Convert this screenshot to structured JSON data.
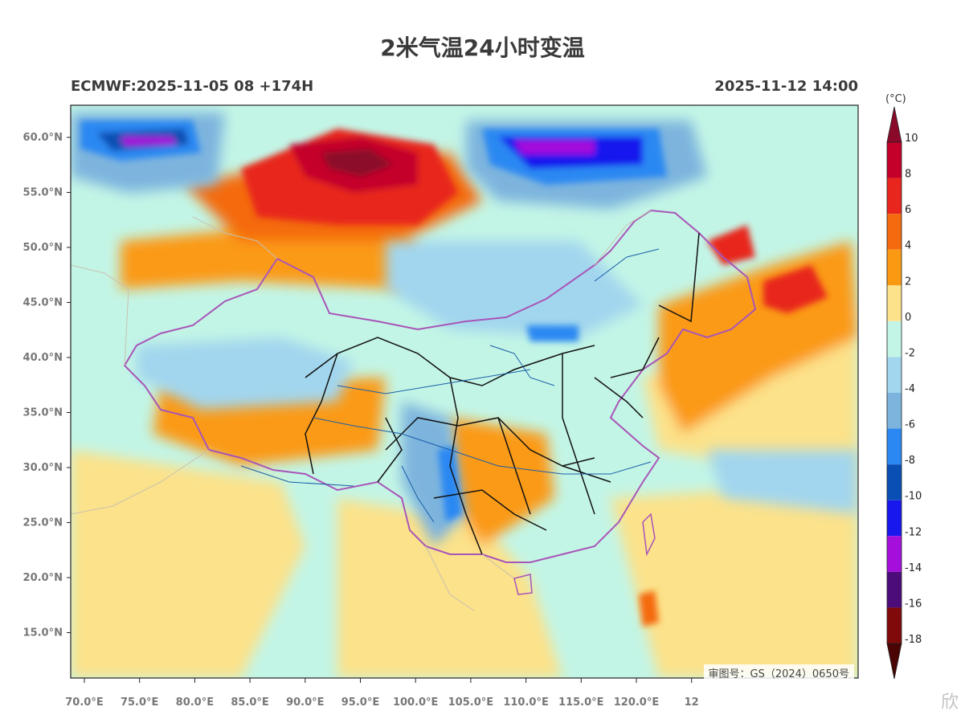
{
  "title": "2米气温24小时变温",
  "run_label": "ECMWF:2025-11-05 08 +174H",
  "valid_label": "2025-11-12 14:00",
  "colorbar": {
    "unit": "(°C)",
    "levels": [
      "10",
      "8",
      "6",
      "4",
      "2",
      "0",
      "-2",
      "-4",
      "-6",
      "-8",
      "-10",
      "-12",
      "-14",
      "-16",
      "-18"
    ],
    "colors": [
      "#8b0a2a",
      "#c4002a",
      "#e8261e",
      "#f46a0e",
      "#fb9a12",
      "#fce28a",
      "#c3f5e6",
      "#a2d6ee",
      "#7db4de",
      "#2b88f2",
      "#0a4fb4",
      "#1818ee",
      "#a40fdc",
      "#4c0c7a",
      "#800a0a",
      "#4a0404"
    ]
  },
  "lat_labels": [
    "60.0°N",
    "55.0°N",
    "50.0°N",
    "45.0°N",
    "40.0°N",
    "35.0°N",
    "30.0°N",
    "25.0°N",
    "20.0°N",
    "15.0°N"
  ],
  "lon_labels": [
    "70.0°E",
    "75.0°E",
    "80.0°E",
    "85.0°E",
    "90.0°E",
    "95.0°E",
    "100.0°E",
    "105.0°E",
    "110.0°E",
    "115.0°E",
    "120.0°E",
    "12"
  ],
  "credit": "审图号：GS（2024）0650号",
  "watermark": "欣"
}
